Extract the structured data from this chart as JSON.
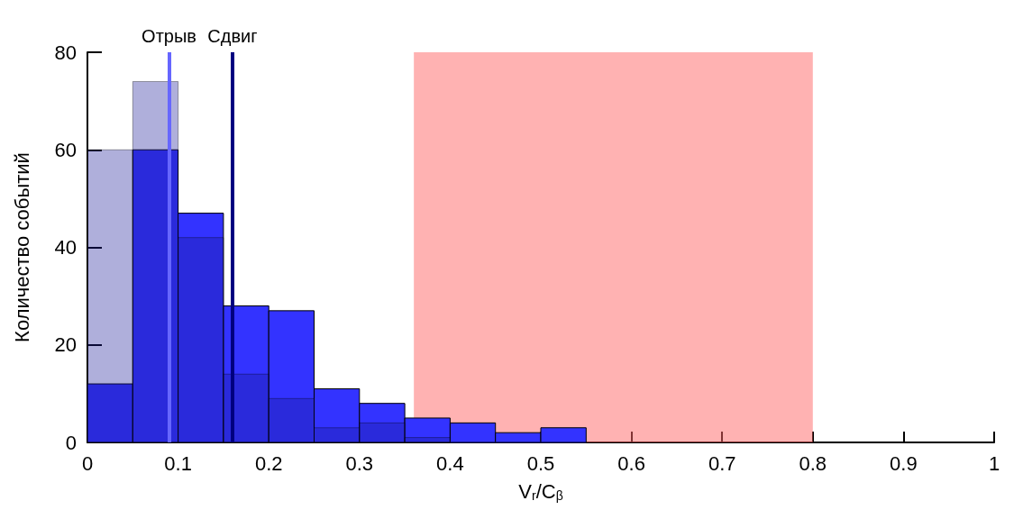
{
  "chart_data": {
    "type": "histogram",
    "xlabel": "V$_{r}$/C$_{β}$",
    "ylabel": "Количество событий",
    "bins": [
      0,
      0.05,
      0.1,
      0.15,
      0.2,
      0.25,
      0.3,
      0.35,
      0.4,
      0.45,
      0.5,
      0.55
    ],
    "series": [
      {
        "color": "#3333ff",
        "values": [
          12,
          60,
          47,
          28,
          27,
          11,
          8,
          5,
          4,
          2,
          3
        ]
      },
      {
        "color": "#1a1a99",
        "values": [
          60,
          74,
          42,
          14,
          9,
          3,
          4,
          1,
          0,
          0,
          0
        ]
      }
    ],
    "xlim": [
      0,
      1
    ],
    "xticks": [
      0,
      0.1,
      0.2,
      0.3,
      0.4,
      0.5,
      0.6,
      0.7,
      0.8,
      0.9,
      1
    ],
    "ylim": [
      0,
      80
    ],
    "yticks": [
      0,
      20,
      40,
      60,
      80
    ],
    "grid": false,
    "ref_lines": [
      {
        "axis": "x",
        "value": 0.094,
        "label": "Отрыв",
        "color": "#6666ff"
      },
      {
        "axis": "x",
        "value": 0.163,
        "label": "Сдвиг",
        "color": "#000080"
      }
    ],
    "bands": [
      {
        "axis": "x",
        "from": 0.36,
        "to": 0.8,
        "color": "#ff6666"
      }
    ]
  }
}
